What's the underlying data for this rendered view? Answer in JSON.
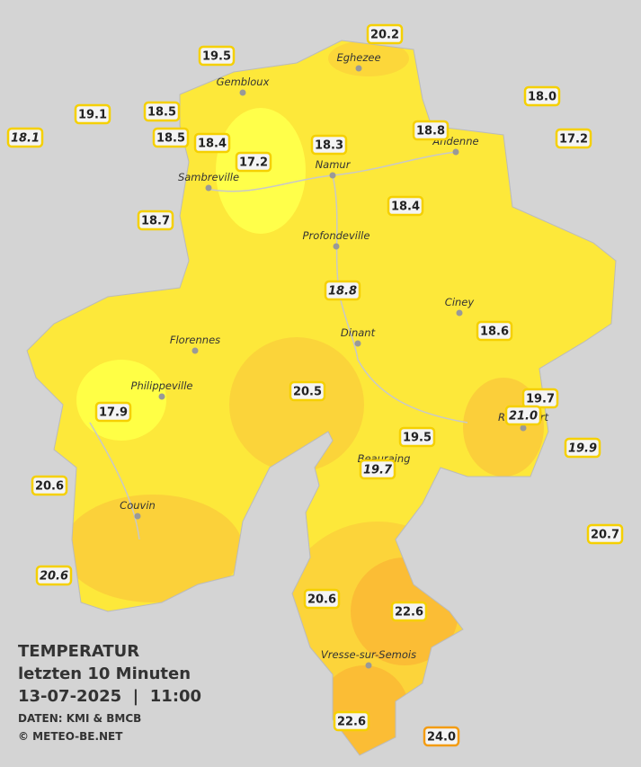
{
  "legend": {
    "title": "TEMPERATUR",
    "period": "letzten 10 Minuten",
    "datetime": "13-07-2025  |  11:00",
    "source": "DATEN: KMI & BMCB",
    "copyright": "© METEO-BE.NET"
  },
  "cities": [
    "Eghezee",
    "Gembloux",
    "Andenne",
    "Namur",
    "Sambreville",
    "Profondeville",
    "Ciney",
    "Dinant",
    "Florennes",
    "Philippeville",
    "Rochefort",
    "Beauraing",
    "Couvin",
    "Vresse-sur-Semois"
  ],
  "stations": [
    {
      "label": "20.2"
    },
    {
      "label": "19.5"
    },
    {
      "label": "19.1"
    },
    {
      "label": "18.5"
    },
    {
      "label": "18.1",
      "italic": true
    },
    {
      "label": "18.5"
    },
    {
      "label": "18.4"
    },
    {
      "label": "17.2"
    },
    {
      "label": "18.3"
    },
    {
      "label": "18.8"
    },
    {
      "label": "18.0"
    },
    {
      "label": "17.2"
    },
    {
      "label": "18.7"
    },
    {
      "label": "18.4"
    },
    {
      "label": "18.8",
      "italic": true
    },
    {
      "label": "18.6"
    },
    {
      "label": "20.5"
    },
    {
      "label": "17.9"
    },
    {
      "label": "19.7"
    },
    {
      "label": "21.0",
      "italic": true
    },
    {
      "label": "19.9",
      "italic": true
    },
    {
      "label": "19.5"
    },
    {
      "label": "19.7",
      "italic": true
    },
    {
      "label": "20.6"
    },
    {
      "label": "20.7"
    },
    {
      "label": "20.6",
      "italic": true
    },
    {
      "label": "20.6"
    },
    {
      "label": "22.6"
    },
    {
      "label": "22.6"
    },
    {
      "label": "24.0",
      "border": "#f39c12"
    }
  ]
}
